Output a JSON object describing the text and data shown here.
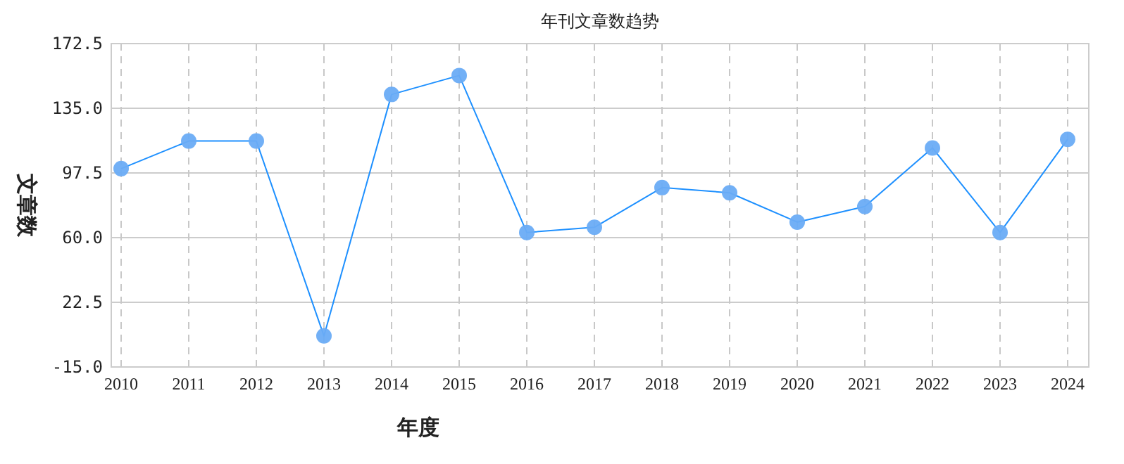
{
  "chart_data": {
    "type": "line",
    "title": "年刊文章数趋势",
    "xlabel": "年度",
    "ylabel": "文章数",
    "categories": [
      "2010",
      "2011",
      "2012",
      "2013",
      "2014",
      "2015",
      "2016",
      "2017",
      "2018",
      "2019",
      "2020",
      "2021",
      "2022",
      "2023",
      "2024"
    ],
    "series": [
      {
        "color": "#1e90ff",
        "values": [
          100,
          116,
          116,
          3,
          143,
          154,
          63,
          66,
          89,
          86,
          69,
          78,
          112,
          63,
          117
        ]
      }
    ],
    "ylim": [
      -15,
      172.5
    ],
    "yticks": [
      {
        "value": -15,
        "label": "-15.0"
      },
      {
        "value": 22.5,
        "label": "22.5"
      },
      {
        "value": 60,
        "label": "60.0"
      },
      {
        "value": 97.5,
        "label": "97.5"
      },
      {
        "value": 135,
        "label": "135.0"
      },
      {
        "value": 172.5,
        "label": "172.5"
      }
    ],
    "grid": true,
    "marker": "circle",
    "line_style": "solid"
  }
}
